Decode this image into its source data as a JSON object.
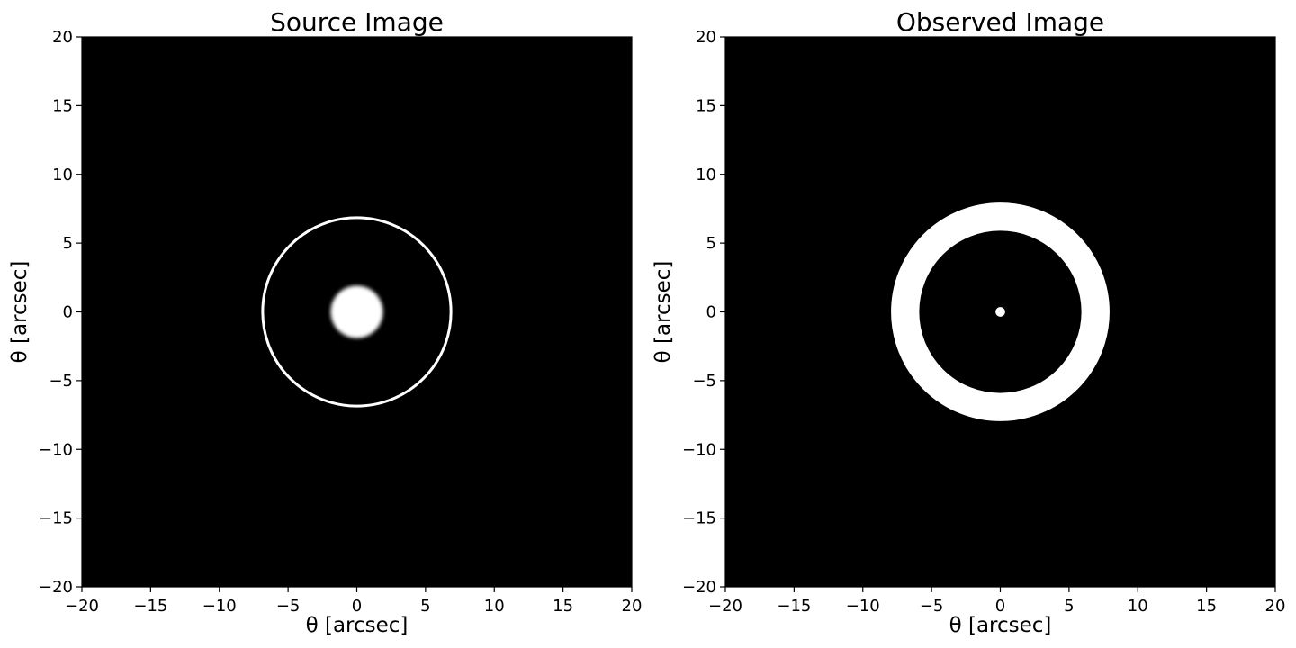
{
  "chart_data": [
    {
      "type": "image",
      "title": "Source Image",
      "xlabel": "θ   [arcsec]",
      "ylabel": "θ   [arcsec]",
      "xlim": [
        -20,
        20
      ],
      "ylim": [
        -20,
        20
      ],
      "xticks": [
        -20,
        -15,
        -10,
        -5,
        0,
        5,
        10,
        15,
        20
      ],
      "yticks": [
        -20,
        -15,
        -10,
        -5,
        0,
        5,
        10,
        15,
        20
      ],
      "colormap": "gray",
      "background": "#000000",
      "features": [
        {
          "kind": "filled-disk",
          "center": [
            0,
            0
          ],
          "radius": 1.9,
          "blurred_edge": true,
          "color": "#ffffff"
        },
        {
          "kind": "circle-outline",
          "center": [
            0,
            0
          ],
          "radius": 6.85,
          "color": "#ffffff"
        }
      ]
    },
    {
      "type": "image",
      "title": "Observed Image",
      "xlabel": "θ   [arcsec]",
      "ylabel": "θ   [arcsec]",
      "xlim": [
        -20,
        20
      ],
      "ylim": [
        -20,
        20
      ],
      "xticks": [
        -20,
        -15,
        -10,
        -5,
        0,
        5,
        10,
        15,
        20
      ],
      "yticks": [
        -20,
        -15,
        -10,
        -5,
        0,
        5,
        10,
        15,
        20
      ],
      "colormap": "gray",
      "background": "#000000",
      "features": [
        {
          "kind": "ring",
          "center": [
            0,
            0
          ],
          "inner_radius": 5.9,
          "outer_radius": 7.95,
          "color": "#ffffff"
        },
        {
          "kind": "filled-disk",
          "center": [
            0,
            0
          ],
          "radius": 0.35,
          "blurred_edge": false,
          "color": "#ffffff"
        }
      ]
    }
  ]
}
